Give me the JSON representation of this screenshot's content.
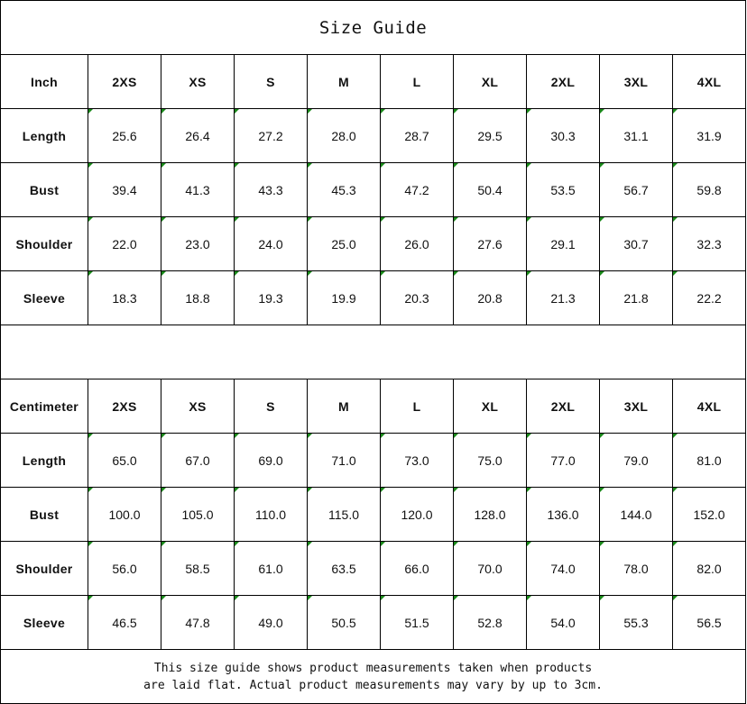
{
  "title": "Size Guide",
  "sizes": [
    "2XS",
    "XS",
    "S",
    "M",
    "L",
    "XL",
    "2XL",
    "3XL",
    "4XL"
  ],
  "tables": [
    {
      "unit": "Inch",
      "rows": [
        {
          "label": "Length",
          "values": [
            "25.6",
            "26.4",
            "27.2",
            "28.0",
            "28.7",
            "29.5",
            "30.3",
            "31.1",
            "31.9"
          ]
        },
        {
          "label": "Bust",
          "values": [
            "39.4",
            "41.3",
            "43.3",
            "45.3",
            "47.2",
            "50.4",
            "53.5",
            "56.7",
            "59.8"
          ]
        },
        {
          "label": "Shoulder",
          "values": [
            "22.0",
            "23.0",
            "24.0",
            "25.0",
            "26.0",
            "27.6",
            "29.1",
            "30.7",
            "32.3"
          ]
        },
        {
          "label": "Sleeve",
          "values": [
            "18.3",
            "18.8",
            "19.3",
            "19.9",
            "20.3",
            "20.8",
            "21.3",
            "21.8",
            "22.2"
          ]
        }
      ]
    },
    {
      "unit": "Centimeter",
      "rows": [
        {
          "label": "Length",
          "values": [
            "65.0",
            "67.0",
            "69.0",
            "71.0",
            "73.0",
            "75.0",
            "77.0",
            "79.0",
            "81.0"
          ]
        },
        {
          "label": "Bust",
          "values": [
            "100.0",
            "105.0",
            "110.0",
            "115.0",
            "120.0",
            "128.0",
            "136.0",
            "144.0",
            "152.0"
          ]
        },
        {
          "label": "Shoulder",
          "values": [
            "56.0",
            "58.5",
            "61.0",
            "63.5",
            "66.0",
            "70.0",
            "74.0",
            "78.0",
            "82.0"
          ]
        },
        {
          "label": "Sleeve",
          "values": [
            "46.5",
            "47.8",
            "49.0",
            "50.5",
            "51.5",
            "52.8",
            "54.0",
            "55.3",
            "56.5"
          ]
        }
      ]
    }
  ],
  "note_line1": "This size guide shows product measurements taken when products",
  "note_line2": "are laid flat. Actual product measurements may vary by up to 3cm.",
  "colors": {
    "border": "#000000",
    "indicator": "#1a8a1a"
  }
}
